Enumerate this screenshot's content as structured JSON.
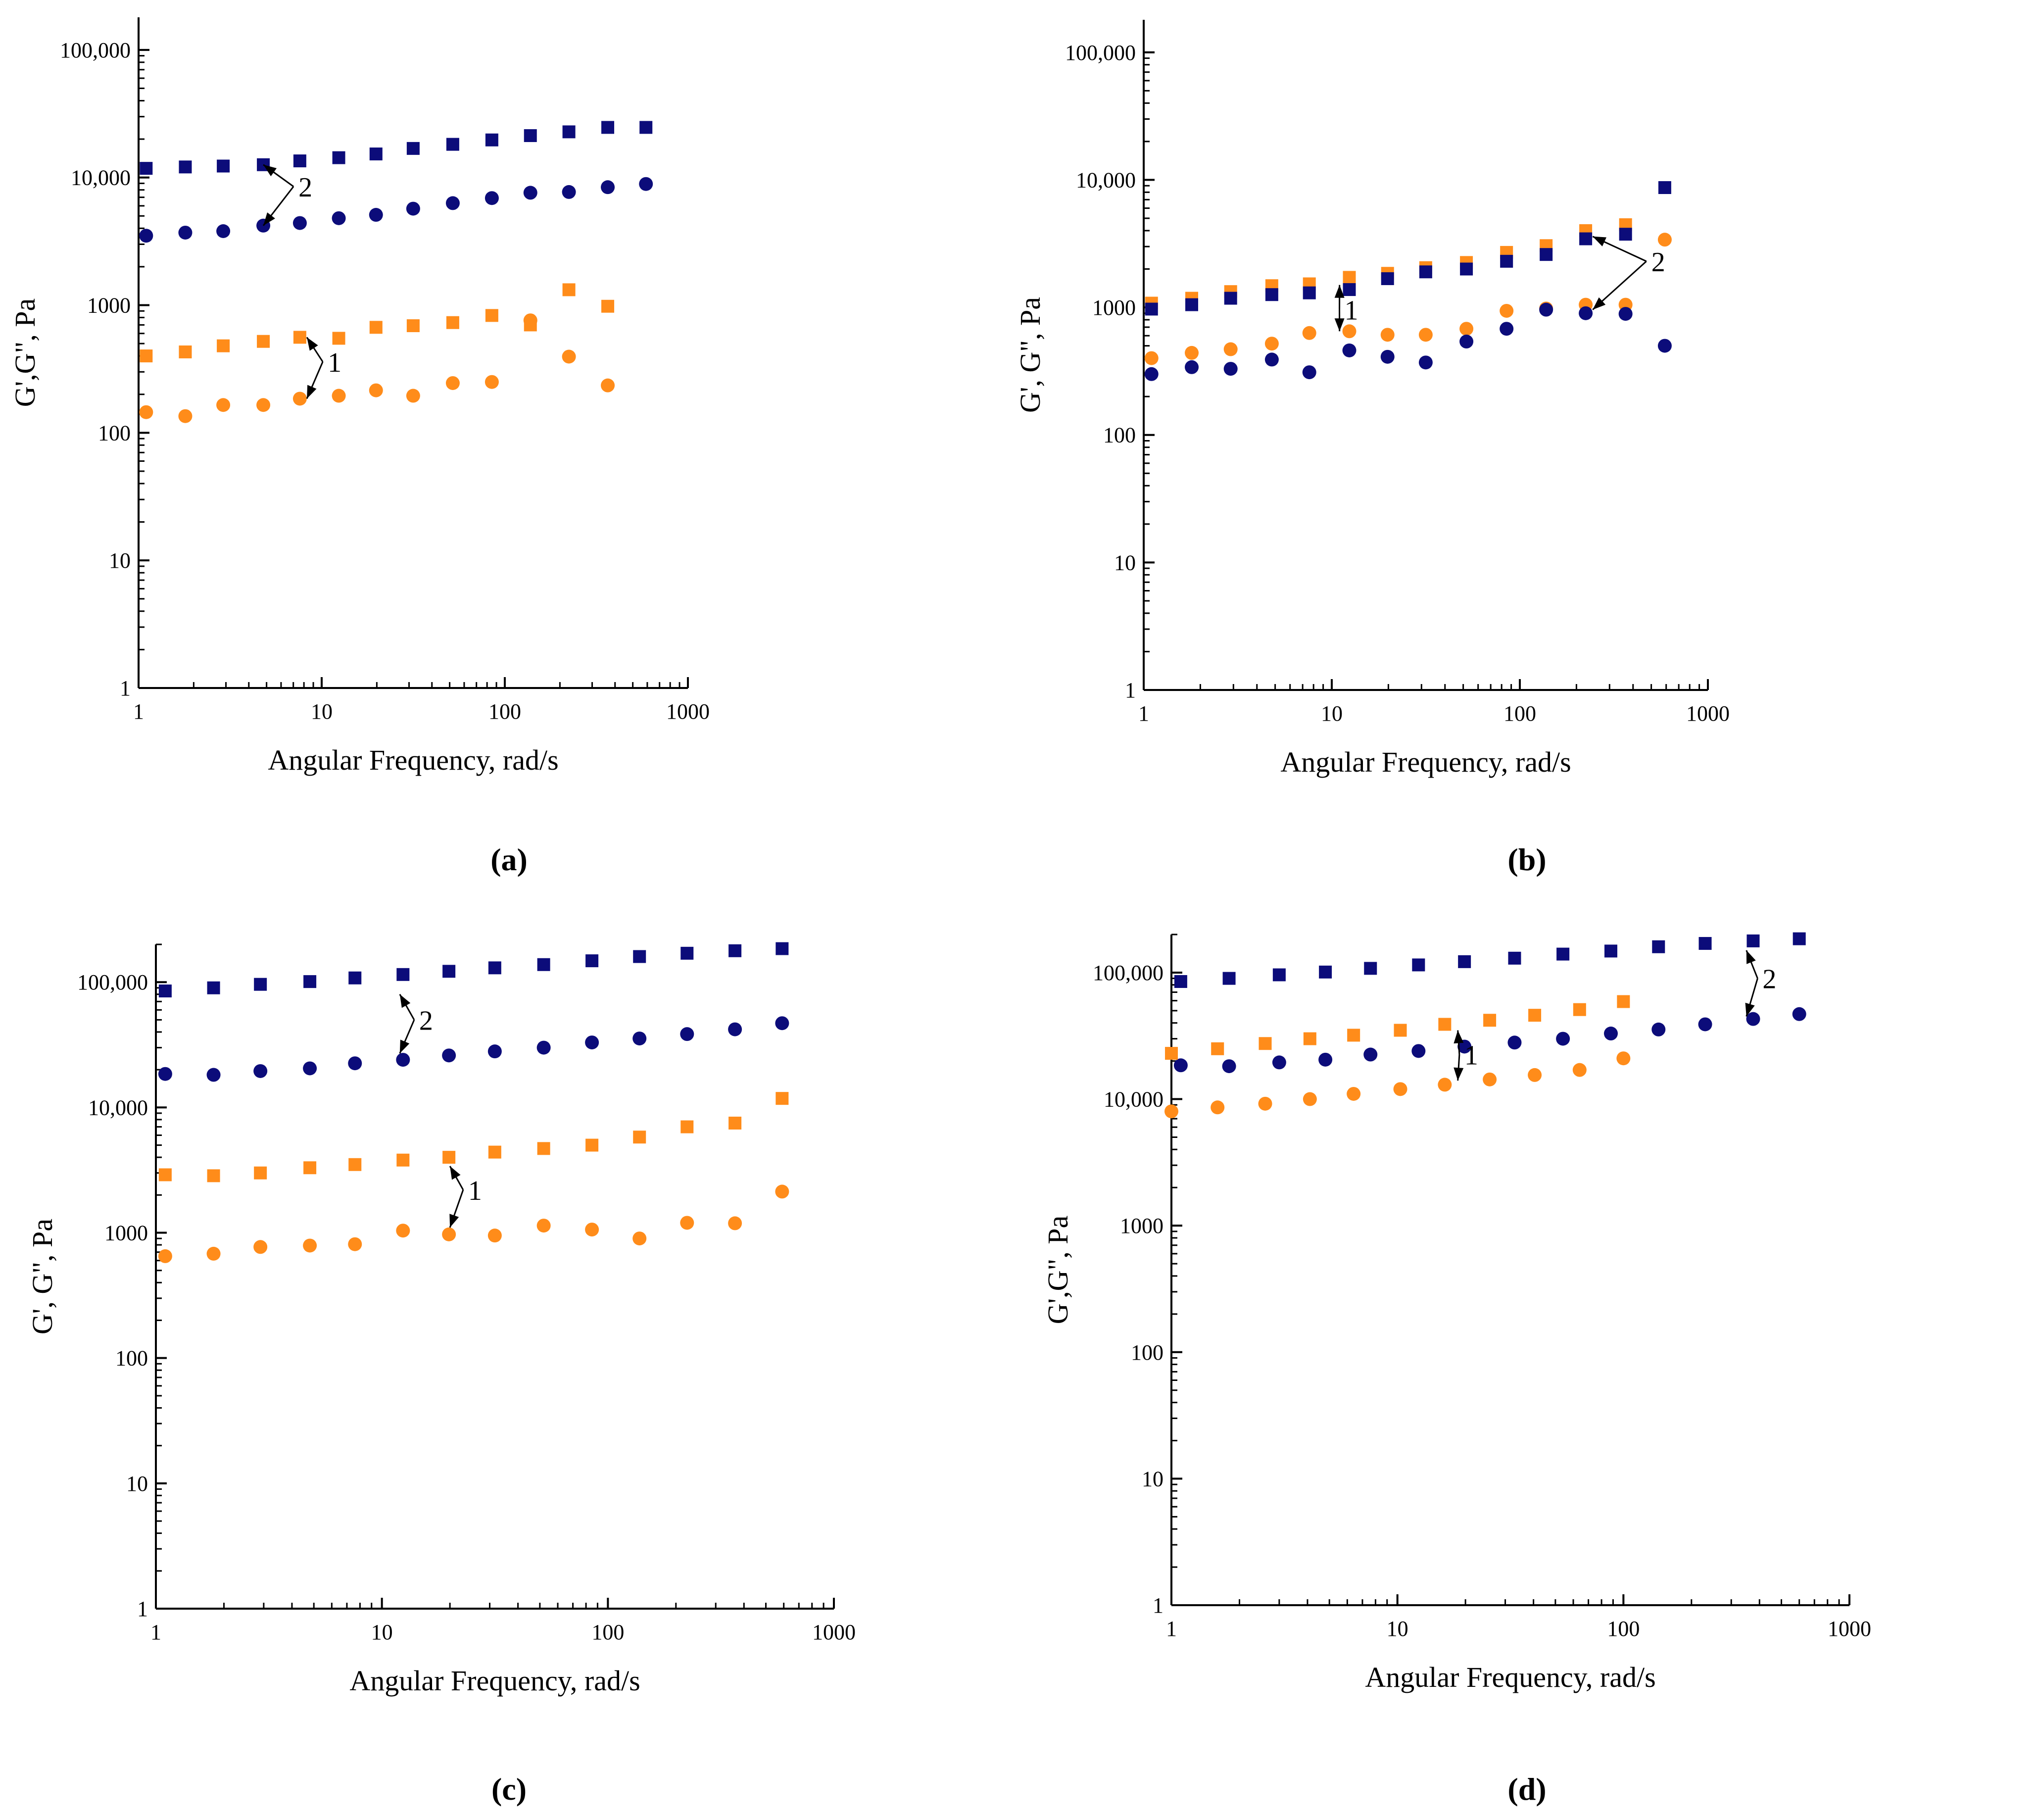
{
  "colors": {
    "gprime_navy": "#0c0c7a",
    "gprime_orange": "#ff8c1a",
    "axis": "#000000"
  },
  "chart_data": [
    {
      "panel": "(a)",
      "type": "scatter",
      "xlabel": "Angular Frequency, rad/s",
      "ylabel": "G',G\", Pa",
      "x_scale": "log",
      "y_scale": "log",
      "xlim": [
        1,
        1000
      ],
      "ylim": [
        1,
        180000
      ],
      "x_ticks": [
        "1",
        "10",
        "100",
        "1000"
      ],
      "y_ticks": [
        "1",
        "10",
        "100",
        "1000",
        "10,000",
        "100,000"
      ],
      "grid": false,
      "series": [
        {
          "name": "G' (2)",
          "marker": "square",
          "color": "#0c0c7a",
          "x": [
            1.1,
            1.8,
            2.9,
            4.8,
            7.6,
            12.4,
            19.8,
            31.6,
            52.0,
            85.0,
            138,
            224,
            365,
            590
          ],
          "y": [
            11800,
            12100,
            12300,
            12600,
            13500,
            14300,
            15300,
            16900,
            18200,
            19700,
            21300,
            22800,
            24700,
            24700
          ]
        },
        {
          "name": "G\" (2)",
          "marker": "circle",
          "color": "#0c0c7a",
          "x": [
            1.1,
            1.8,
            2.9,
            4.8,
            7.6,
            12.4,
            19.8,
            31.6,
            52.0,
            85.0,
            138,
            224,
            365,
            590
          ],
          "y": [
            3500,
            3700,
            3800,
            4200,
            4400,
            4800,
            5100,
            5700,
            6300,
            6900,
            7600,
            7700,
            8400,
            8900
          ]
        },
        {
          "name": "G' (1)",
          "marker": "square",
          "color": "#ff8c1a",
          "x": [
            1.1,
            1.8,
            2.9,
            4.8,
            7.6,
            12.4,
            19.8,
            31.6,
            52.0,
            85.0,
            138,
            224,
            365
          ],
          "y": [
            400,
            430,
            480,
            520,
            560,
            550,
            670,
            690,
            730,
            830,
            700,
            1320,
            980
          ]
        },
        {
          "name": "G\" (1)",
          "marker": "circle",
          "color": "#ff8c1a",
          "x": [
            1.1,
            1.8,
            2.9,
            4.8,
            7.6,
            12.4,
            19.8,
            31.6,
            52.0,
            85.0,
            138,
            224,
            365
          ],
          "y": [
            145,
            135,
            165,
            165,
            185,
            195,
            215,
            195,
            245,
            250,
            760,
            395,
            235
          ]
        }
      ],
      "annotations": [
        {
          "text": "2",
          "x": 9.0,
          "y": 8500,
          "targets": [
            [
              4.8,
              12600
            ],
            [
              4.8,
              4200
            ]
          ]
        },
        {
          "text": "1",
          "x": 13.0,
          "y": 360,
          "targets": [
            [
              8.3,
              560
            ],
            [
              8.3,
              185
            ]
          ]
        }
      ]
    },
    {
      "panel": "(b)",
      "type": "scatter",
      "xlabel": "Angular Frequency, rad/s",
      "ylabel": "G', G\", Pa",
      "x_scale": "log",
      "y_scale": "log",
      "xlim": [
        1,
        1000
      ],
      "ylim": [
        1,
        180000
      ],
      "x_ticks": [
        "1",
        "10",
        "100",
        "1000"
      ],
      "y_ticks": [
        "1",
        "10",
        "100",
        "1000",
        "10,000",
        "100,000"
      ],
      "grid": false,
      "series": [
        {
          "name": "G' (1)",
          "marker": "square",
          "color": "#ff8c1a",
          "x": [
            1.1,
            1.8,
            2.9,
            4.8,
            7.6,
            12.4,
            19.8,
            31.6,
            52.0,
            85.0,
            138,
            224,
            365
          ],
          "y": [
            1080,
            1180,
            1330,
            1480,
            1530,
            1720,
            1850,
            2050,
            2250,
            2700,
            3050,
            4000,
            4450
          ]
        },
        {
          "name": "G\" (1)",
          "marker": "circle",
          "color": "#ff8c1a",
          "x": [
            1.1,
            1.8,
            2.9,
            4.8,
            7.6,
            12.4,
            19.8,
            31.6,
            52.0,
            85.0,
            138,
            224,
            365,
            590
          ],
          "y": [
            400,
            440,
            470,
            520,
            630,
            650,
            610,
            610,
            680,
            940,
            980,
            1050,
            1050,
            3400
          ]
        },
        {
          "name": "G' (2)",
          "marker": "square",
          "color": "#0c0c7a",
          "x": [
            1.1,
            1.8,
            2.9,
            4.8,
            7.6,
            12.4,
            19.8,
            31.6,
            52.0,
            85.0,
            138,
            224,
            365,
            590
          ],
          "y": [
            970,
            1050,
            1180,
            1260,
            1300,
            1380,
            1680,
            1900,
            2000,
            2300,
            2600,
            3450,
            3750,
            8700
          ]
        },
        {
          "name": "G\" (2)",
          "marker": "circle",
          "color": "#0c0c7a",
          "x": [
            1.1,
            1.8,
            2.9,
            4.8,
            7.6,
            12.4,
            19.8,
            31.6,
            52.0,
            85.0,
            138,
            224,
            365,
            590
          ],
          "y": [
            300,
            340,
            330,
            390,
            310,
            460,
            410,
            370,
            540,
            680,
            960,
            900,
            890,
            500
          ]
        }
      ],
      "annotations": [
        {
          "text": "1",
          "x": 14.0,
          "y": 960,
          "targets": [
            [
              11.0,
              1500
            ],
            [
              11.0,
              650
            ]
          ]
        },
        {
          "text": "2",
          "x": 600,
          "y": 2300,
          "targets": [
            [
              244,
              3600
            ],
            [
              244,
              960
            ]
          ]
        }
      ]
    },
    {
      "panel": "(c)",
      "type": "scatter",
      "xlabel": "Angular Frequency, rad/s",
      "ylabel": "G', G\", Pa",
      "x_scale": "log",
      "y_scale": "log",
      "xlim": [
        1,
        1000
      ],
      "ylim": [
        1,
        200000
      ],
      "x_ticks": [
        "1",
        "10",
        "100",
        "1000"
      ],
      "y_ticks": [
        "1",
        "10",
        "100",
        "1000",
        "10,000",
        "100,000"
      ],
      "grid": false,
      "series": [
        {
          "name": "G' (2)",
          "marker": "square",
          "color": "#0c0c7a",
          "x": [
            1.1,
            1.8,
            2.9,
            4.8,
            7.6,
            12.4,
            19.8,
            31.6,
            52.0,
            85.0,
            138,
            224,
            365,
            590
          ],
          "y": [
            85000,
            90000,
            96000,
            101000,
            108000,
            115000,
            122000,
            130000,
            138000,
            148000,
            160000,
            170000,
            178000,
            185000
          ]
        },
        {
          "name": "G\" (2)",
          "marker": "circle",
          "color": "#0c0c7a",
          "x": [
            1.1,
            1.8,
            2.9,
            4.8,
            7.6,
            12.4,
            19.8,
            31.6,
            52.0,
            85.0,
            138,
            224,
            365,
            590
          ],
          "y": [
            18500,
            18200,
            19500,
            20500,
            22500,
            24000,
            26000,
            28000,
            30000,
            33000,
            35500,
            38500,
            42000,
            47000
          ]
        },
        {
          "name": "G' (1)",
          "marker": "square",
          "color": "#ff8c1a",
          "x": [
            1.1,
            1.8,
            2.9,
            4.8,
            7.6,
            12.4,
            19.8,
            31.6,
            52.0,
            85.0,
            138,
            224,
            365,
            590
          ],
          "y": [
            2900,
            2850,
            3000,
            3300,
            3500,
            3800,
            4000,
            4400,
            4700,
            5000,
            5800,
            7000,
            7500,
            11800
          ]
        },
        {
          "name": "G\" (1)",
          "marker": "circle",
          "color": "#ff8c1a",
          "x": [
            1.1,
            1.8,
            2.9,
            4.8,
            7.6,
            12.4,
            19.8,
            31.6,
            52.0,
            85.0,
            138,
            224,
            365,
            590
          ],
          "y": [
            650,
            680,
            770,
            790,
            810,
            1040,
            970,
            950,
            1140,
            1060,
            900,
            1200,
            1190,
            2130
          ]
        }
      ],
      "annotations": [
        {
          "text": "2",
          "x": 17.0,
          "y": 50000,
          "targets": [
            [
              12.0,
              80000
            ],
            [
              12.0,
              27000
            ]
          ]
        },
        {
          "text": "1",
          "x": 28.0,
          "y": 2200,
          "targets": [
            [
              20.0,
              3400
            ],
            [
              20.0,
              1100
            ]
          ]
        }
      ]
    },
    {
      "panel": "(d)",
      "type": "scatter",
      "xlabel": "Angular Frequency, rad/s",
      "ylabel": "G',G\", Pa",
      "x_scale": "log",
      "y_scale": "log",
      "xlim": [
        1,
        1000
      ],
      "ylim": [
        1,
        200000
      ],
      "x_ticks": [
        "1",
        "10",
        "100",
        "1000"
      ],
      "y_ticks": [
        "1",
        "10",
        "100",
        "1000",
        "10,000",
        "100,000"
      ],
      "grid": false,
      "series": [
        {
          "name": "G' (2)",
          "marker": "square",
          "color": "#0c0c7a",
          "x": [
            1.1,
            1.8,
            3.0,
            4.8,
            7.6,
            12.4,
            19.8,
            33.0,
            54.0,
            88.0,
            143,
            230,
            375,
            600
          ],
          "y": [
            85000,
            90000,
            96000,
            101000,
            108000,
            115000,
            122000,
            130000,
            140000,
            148000,
            160000,
            170000,
            178000,
            185000
          ]
        },
        {
          "name": "G\" (2)",
          "marker": "circle",
          "color": "#0c0c7a",
          "x": [
            1.1,
            1.8,
            3.0,
            4.8,
            7.6,
            12.4,
            19.8,
            33.0,
            54.0,
            88.0,
            143,
            230,
            375,
            600
          ],
          "y": [
            18500,
            18200,
            19500,
            20500,
            22500,
            24000,
            26000,
            28000,
            30000,
            33000,
            35500,
            39000,
            43000,
            47000
          ]
        },
        {
          "name": "G' (1)",
          "marker": "square",
          "color": "#ff8c1a",
          "x": [
            1.0,
            1.6,
            2.6,
            4.1,
            6.4,
            10.3,
            16.2,
            25.6,
            40.5,
            64.0,
            100
          ],
          "y": [
            23000,
            25000,
            27500,
            30000,
            32000,
            35000,
            39000,
            42000,
            46000,
            51000,
            59000
          ]
        },
        {
          "name": "G\" (1)",
          "marker": "circle",
          "color": "#ff8c1a",
          "x": [
            1.0,
            1.6,
            2.6,
            4.1,
            6.4,
            10.3,
            16.2,
            25.6,
            40.5,
            64.0,
            100
          ],
          "y": [
            8000,
            8600,
            9200,
            10000,
            11000,
            12000,
            13000,
            14300,
            15500,
            17000,
            21000
          ]
        }
      ],
      "annotations": [
        {
          "text": "1",
          "x": 23.0,
          "y": 22500,
          "targets": [
            [
              18.5,
              35000
            ],
            [
              18.5,
              14000
            ]
          ]
        },
        {
          "text": "2",
          "x": 480,
          "y": 90000,
          "targets": [
            [
              350,
              150000
            ],
            [
              350,
              45000
            ]
          ]
        }
      ]
    }
  ]
}
